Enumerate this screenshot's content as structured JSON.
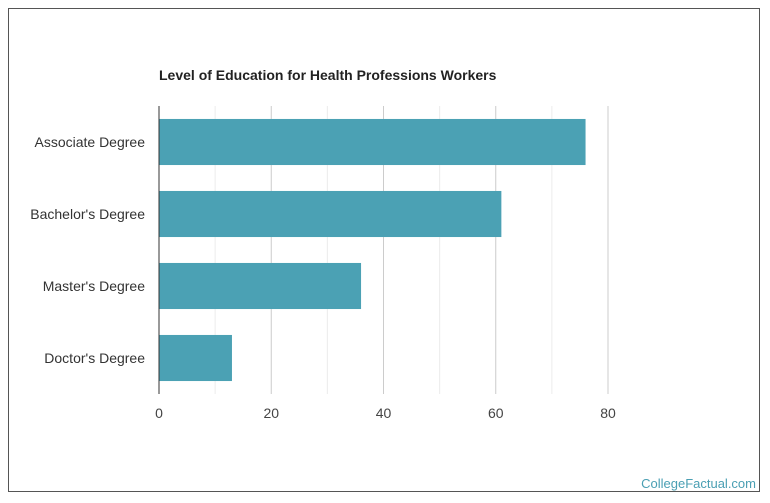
{
  "chart_data": {
    "type": "bar",
    "orientation": "horizontal",
    "title": "Level of Education for Health Professions Workers",
    "categories": [
      "Associate Degree",
      "Bachelor's Degree",
      "Master's Degree",
      "Doctor's Degree"
    ],
    "values": [
      76,
      61,
      36,
      13
    ],
    "xlim": [
      0,
      80
    ],
    "xticks": [
      0,
      20,
      40,
      60,
      80
    ],
    "grid": true,
    "bar_color": "#4ba1b4",
    "legend": "none"
  },
  "watermark": "CollegeFactual.com"
}
